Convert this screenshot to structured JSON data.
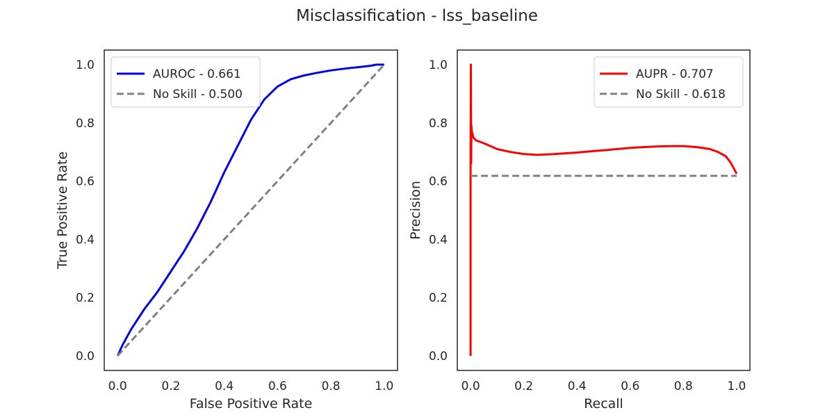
{
  "figure": {
    "title": "Misclassification - lss_baseline"
  },
  "colors": {
    "auroc": "#0000ee",
    "aupr": "#ff0000",
    "noskill": "#808080",
    "axis": "#262626"
  },
  "chart_data": [
    {
      "type": "line",
      "xlabel": "False Positive Rate",
      "ylabel": "True Positive Rate",
      "xlim": [
        -0.05,
        1.05
      ],
      "ylim": [
        -0.05,
        1.05
      ],
      "xticks": [
        "0.0",
        "0.2",
        "0.4",
        "0.6",
        "0.8",
        "1.0"
      ],
      "yticks": [
        "0.0",
        "0.2",
        "0.4",
        "0.6",
        "0.8",
        "1.0"
      ],
      "legend_position": "upper-left",
      "series": [
        {
          "name": "AUROC - 0.661",
          "color": "#0000ee",
          "style": "solid",
          "x": [
            0.0,
            0.02,
            0.05,
            0.1,
            0.15,
            0.2,
            0.25,
            0.3,
            0.35,
            0.4,
            0.45,
            0.5,
            0.55,
            0.6,
            0.65,
            0.7,
            0.75,
            0.8,
            0.85,
            0.9,
            0.95,
            0.97,
            1.0
          ],
          "y": [
            0.0,
            0.04,
            0.09,
            0.16,
            0.22,
            0.29,
            0.36,
            0.44,
            0.53,
            0.63,
            0.72,
            0.81,
            0.88,
            0.925,
            0.95,
            0.963,
            0.972,
            0.98,
            0.986,
            0.991,
            0.996,
            1.0,
            1.0
          ]
        },
        {
          "name": "No Skill - 0.500",
          "color": "#808080",
          "style": "dashed",
          "x": [
            0.0,
            1.0
          ],
          "y": [
            0.0,
            1.0
          ]
        }
      ]
    },
    {
      "type": "line",
      "xlabel": "Recall",
      "ylabel": "Precision",
      "xlim": [
        -0.05,
        1.05
      ],
      "ylim": [
        -0.05,
        1.05
      ],
      "xticks": [
        "0.0",
        "0.2",
        "0.4",
        "0.6",
        "0.8",
        "1.0"
      ],
      "yticks": [
        "0.0",
        "0.2",
        "0.4",
        "0.6",
        "0.8",
        "1.0"
      ],
      "legend_position": "upper-right",
      "series": [
        {
          "name": "AUPR - 0.707",
          "color": "#ff0000",
          "style": "solid",
          "x": [
            0.0,
            0.0,
            0.001,
            0.002,
            0.003,
            0.005,
            0.01,
            0.02,
            0.05,
            0.1,
            0.15,
            0.2,
            0.25,
            0.3,
            0.35,
            0.4,
            0.45,
            0.5,
            0.55,
            0.6,
            0.65,
            0.7,
            0.75,
            0.8,
            0.85,
            0.9,
            0.93,
            0.96,
            0.98,
            1.0
          ],
          "y": [
            0.0,
            0.68,
            1.0,
            0.66,
            0.79,
            0.77,
            0.75,
            0.74,
            0.73,
            0.71,
            0.7,
            0.693,
            0.69,
            0.692,
            0.695,
            0.698,
            0.702,
            0.706,
            0.71,
            0.714,
            0.717,
            0.719,
            0.72,
            0.72,
            0.717,
            0.71,
            0.7,
            0.685,
            0.66,
            0.625
          ]
        },
        {
          "name": "No Skill - 0.618",
          "color": "#808080",
          "style": "dashed",
          "x": [
            0.0,
            1.0
          ],
          "y": [
            0.618,
            0.618
          ]
        }
      ]
    }
  ]
}
